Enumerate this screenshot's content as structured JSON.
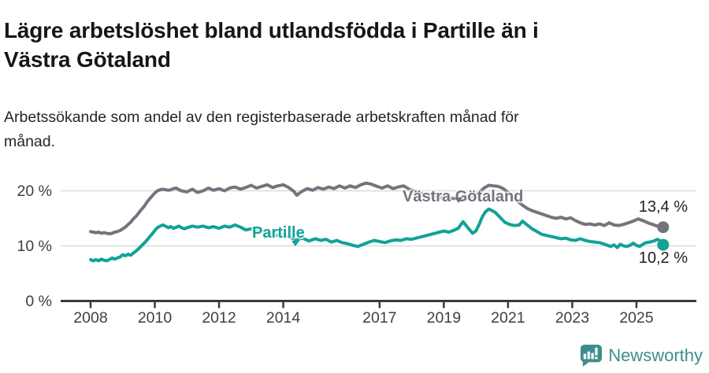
{
  "header": {
    "title": "Lägre arbetslöshet bland utlandsfödda i Partille än i\nVästra Götaland",
    "subtitle": "Arbetssökande som andel av den registerbaserade arbetskraften månad för\nmånad."
  },
  "footer": {
    "brand": "Newsworthy",
    "brand_color": "#3d8e8a"
  },
  "chart_data": {
    "type": "line",
    "title": "Lägre arbetslöshet bland utlandsfödda i Partille än i Västra Götaland",
    "subtitle": "Arbetssökande som andel av den registerbaserade arbetskraften månad för månad.",
    "xlabel": "",
    "ylabel": "",
    "grid": "horizontal",
    "legend_position": "inline-labels",
    "ylim": [
      0,
      23
    ],
    "xlim": [
      2007.1,
      2026.9
    ],
    "y_ticks": [
      {
        "value": 0,
        "label": "0 %"
      },
      {
        "value": 10,
        "label": "10 %"
      },
      {
        "value": 20,
        "label": "20 %"
      }
    ],
    "x_ticks": [
      {
        "value": 2008,
        "label": "2008"
      },
      {
        "value": 2010,
        "label": "2010"
      },
      {
        "value": 2012,
        "label": "2012"
      },
      {
        "value": 2014,
        "label": "2014"
      },
      {
        "value": 2017,
        "label": "2017"
      },
      {
        "value": 2019,
        "label": "2019"
      },
      {
        "value": 2021,
        "label": "2021"
      },
      {
        "value": 2023,
        "label": "2023"
      },
      {
        "value": 2025,
        "label": "2025"
      }
    ],
    "series": [
      {
        "name": "Västra Götaland",
        "color": "#75737e",
        "end_label": "13,4 %",
        "end_value": 13.4,
        "points": [
          [
            2008.0,
            12.6
          ],
          [
            2008.08,
            12.5
          ],
          [
            2008.17,
            12.4
          ],
          [
            2008.25,
            12.5
          ],
          [
            2008.33,
            12.3
          ],
          [
            2008.42,
            12.4
          ],
          [
            2008.5,
            12.3
          ],
          [
            2008.58,
            12.2
          ],
          [
            2008.67,
            12.3
          ],
          [
            2008.75,
            12.5
          ],
          [
            2008.83,
            12.6
          ],
          [
            2008.92,
            12.8
          ],
          [
            2009.0,
            13.1
          ],
          [
            2009.08,
            13.4
          ],
          [
            2009.17,
            13.9
          ],
          [
            2009.25,
            14.3
          ],
          [
            2009.33,
            14.9
          ],
          [
            2009.42,
            15.4
          ],
          [
            2009.5,
            16.0
          ],
          [
            2009.58,
            16.6
          ],
          [
            2009.67,
            17.2
          ],
          [
            2009.75,
            17.9
          ],
          [
            2009.83,
            18.5
          ],
          [
            2009.92,
            19.1
          ],
          [
            2010.0,
            19.6
          ],
          [
            2010.08,
            20.0
          ],
          [
            2010.17,
            20.2
          ],
          [
            2010.25,
            20.3
          ],
          [
            2010.33,
            20.2
          ],
          [
            2010.42,
            20.1
          ],
          [
            2010.5,
            20.2
          ],
          [
            2010.58,
            20.4
          ],
          [
            2010.67,
            20.5
          ],
          [
            2010.75,
            20.2
          ],
          [
            2010.83,
            20.0
          ],
          [
            2010.92,
            19.9
          ],
          [
            2011.0,
            19.8
          ],
          [
            2011.17,
            20.3
          ],
          [
            2011.33,
            19.7
          ],
          [
            2011.5,
            20.0
          ],
          [
            2011.67,
            20.5
          ],
          [
            2011.83,
            20.1
          ],
          [
            2012.0,
            20.4
          ],
          [
            2012.17,
            20.0
          ],
          [
            2012.33,
            20.5
          ],
          [
            2012.5,
            20.7
          ],
          [
            2012.67,
            20.3
          ],
          [
            2012.83,
            20.6
          ],
          [
            2013.0,
            21.0
          ],
          [
            2013.17,
            20.5
          ],
          [
            2013.33,
            20.8
          ],
          [
            2013.5,
            21.1
          ],
          [
            2013.67,
            20.6
          ],
          [
            2013.83,
            20.9
          ],
          [
            2014.0,
            21.1
          ],
          [
            2014.17,
            20.6
          ],
          [
            2014.33,
            19.9
          ],
          [
            2014.42,
            19.2
          ],
          [
            2014.58,
            19.9
          ],
          [
            2014.75,
            20.4
          ],
          [
            2014.92,
            20.1
          ],
          [
            2015.08,
            20.6
          ],
          [
            2015.25,
            20.3
          ],
          [
            2015.42,
            20.7
          ],
          [
            2015.58,
            20.4
          ],
          [
            2015.75,
            20.9
          ],
          [
            2015.92,
            20.5
          ],
          [
            2016.08,
            20.9
          ],
          [
            2016.25,
            20.6
          ],
          [
            2016.42,
            21.1
          ],
          [
            2016.58,
            21.4
          ],
          [
            2016.75,
            21.2
          ],
          [
            2016.92,
            20.8
          ],
          [
            2017.08,
            20.5
          ],
          [
            2017.25,
            20.9
          ],
          [
            2017.42,
            20.4
          ],
          [
            2017.58,
            20.7
          ],
          [
            2017.75,
            20.9
          ],
          [
            2017.92,
            20.3
          ],
          [
            2018.1,
            19.9
          ],
          [
            2018.3,
            19.5
          ],
          [
            2018.5,
            19.2
          ],
          [
            2018.7,
            19.0
          ],
          [
            2018.9,
            18.8
          ],
          [
            2019.1,
            18.7
          ],
          [
            2019.3,
            18.6
          ],
          [
            2019.5,
            18.7
          ],
          [
            2019.7,
            18.5
          ],
          [
            2019.9,
            18.9
          ],
          [
            2020.1,
            19.7
          ],
          [
            2020.25,
            20.5
          ],
          [
            2020.4,
            21.0
          ],
          [
            2020.55,
            20.9
          ],
          [
            2020.7,
            20.8
          ],
          [
            2020.85,
            20.4
          ],
          [
            2021.0,
            19.7
          ],
          [
            2021.15,
            18.9
          ],
          [
            2021.3,
            18.1
          ],
          [
            2021.45,
            17.4
          ],
          [
            2021.6,
            16.8
          ],
          [
            2021.75,
            16.4
          ],
          [
            2021.9,
            16.1
          ],
          [
            2022.05,
            15.8
          ],
          [
            2022.2,
            15.5
          ],
          [
            2022.35,
            15.2
          ],
          [
            2022.5,
            15.0
          ],
          [
            2022.65,
            15.2
          ],
          [
            2022.8,
            14.9
          ],
          [
            2022.95,
            15.1
          ],
          [
            2023.1,
            14.6
          ],
          [
            2023.25,
            14.2
          ],
          [
            2023.4,
            13.9
          ],
          [
            2023.55,
            14.0
          ],
          [
            2023.7,
            13.8
          ],
          [
            2023.85,
            14.0
          ],
          [
            2024.0,
            13.7
          ],
          [
            2024.15,
            14.2
          ],
          [
            2024.3,
            13.8
          ],
          [
            2024.45,
            13.7
          ],
          [
            2024.6,
            13.9
          ],
          [
            2024.75,
            14.2
          ],
          [
            2024.9,
            14.5
          ],
          [
            2025.05,
            14.9
          ],
          [
            2025.2,
            14.6
          ],
          [
            2025.35,
            14.2
          ],
          [
            2025.5,
            13.9
          ],
          [
            2025.65,
            13.6
          ],
          [
            2025.75,
            13.7
          ],
          [
            2025.83,
            13.4
          ]
        ]
      },
      {
        "name": "Partille",
        "color": "#12a296",
        "end_label": "10,2 %",
        "end_value": 10.2,
        "points": [
          [
            2008.0,
            7.5
          ],
          [
            2008.08,
            7.3
          ],
          [
            2008.17,
            7.5
          ],
          [
            2008.25,
            7.3
          ],
          [
            2008.33,
            7.6
          ],
          [
            2008.42,
            7.4
          ],
          [
            2008.5,
            7.3
          ],
          [
            2008.58,
            7.5
          ],
          [
            2008.67,
            7.8
          ],
          [
            2008.75,
            7.6
          ],
          [
            2008.83,
            7.8
          ],
          [
            2008.92,
            8.0
          ],
          [
            2009.0,
            8.4
          ],
          [
            2009.08,
            8.2
          ],
          [
            2009.17,
            8.5
          ],
          [
            2009.25,
            8.3
          ],
          [
            2009.33,
            8.7
          ],
          [
            2009.42,
            9.1
          ],
          [
            2009.5,
            9.5
          ],
          [
            2009.58,
            10.0
          ],
          [
            2009.67,
            10.5
          ],
          [
            2009.75,
            11.0
          ],
          [
            2009.83,
            11.6
          ],
          [
            2009.92,
            12.2
          ],
          [
            2010.0,
            12.8
          ],
          [
            2010.08,
            13.3
          ],
          [
            2010.17,
            13.6
          ],
          [
            2010.25,
            13.8
          ],
          [
            2010.33,
            13.6
          ],
          [
            2010.42,
            13.3
          ],
          [
            2010.5,
            13.5
          ],
          [
            2010.58,
            13.2
          ],
          [
            2010.67,
            13.4
          ],
          [
            2010.75,
            13.6
          ],
          [
            2010.83,
            13.3
          ],
          [
            2010.92,
            13.1
          ],
          [
            2011.0,
            13.3
          ],
          [
            2011.17,
            13.6
          ],
          [
            2011.33,
            13.4
          ],
          [
            2011.5,
            13.6
          ],
          [
            2011.67,
            13.3
          ],
          [
            2011.83,
            13.5
          ],
          [
            2012.0,
            13.2
          ],
          [
            2012.17,
            13.6
          ],
          [
            2012.33,
            13.4
          ],
          [
            2012.5,
            13.8
          ],
          [
            2012.67,
            13.4
          ],
          [
            2012.83,
            12.9
          ],
          [
            2013.0,
            13.1
          ],
          [
            2013.2,
            12.9
          ],
          [
            2013.4,
            12.6
          ],
          [
            2013.6,
            12.4
          ],
          [
            2013.8,
            11.9
          ],
          [
            2014.0,
            12.1
          ],
          [
            2014.2,
            11.6
          ],
          [
            2014.4,
            11.1
          ],
          [
            2014.6,
            11.4
          ],
          [
            2014.8,
            10.9
          ],
          [
            2015.0,
            11.3
          ],
          [
            2015.17,
            11.0
          ],
          [
            2015.33,
            11.2
          ],
          [
            2015.5,
            10.7
          ],
          [
            2015.67,
            11.0
          ],
          [
            2015.83,
            10.6
          ],
          [
            2016.0,
            10.4
          ],
          [
            2016.17,
            10.1
          ],
          [
            2016.33,
            9.9
          ],
          [
            2016.5,
            10.3
          ],
          [
            2016.67,
            10.7
          ],
          [
            2016.83,
            11.0
          ],
          [
            2017.0,
            10.8
          ],
          [
            2017.17,
            10.6
          ],
          [
            2017.33,
            10.9
          ],
          [
            2017.5,
            11.1
          ],
          [
            2017.67,
            11.0
          ],
          [
            2017.83,
            11.3
          ],
          [
            2018.0,
            11.2
          ],
          [
            2018.2,
            11.5
          ],
          [
            2018.4,
            11.8
          ],
          [
            2018.6,
            12.1
          ],
          [
            2018.8,
            12.4
          ],
          [
            2019.0,
            12.7
          ],
          [
            2019.15,
            12.5
          ],
          [
            2019.3,
            12.8
          ],
          [
            2019.45,
            13.2
          ],
          [
            2019.6,
            14.4
          ],
          [
            2019.75,
            13.3
          ],
          [
            2019.9,
            12.3
          ],
          [
            2020.0,
            12.7
          ],
          [
            2020.1,
            13.9
          ],
          [
            2020.2,
            15.3
          ],
          [
            2020.3,
            16.2
          ],
          [
            2020.4,
            16.7
          ],
          [
            2020.5,
            16.4
          ],
          [
            2020.6,
            16.1
          ],
          [
            2020.75,
            15.2
          ],
          [
            2020.9,
            14.3
          ],
          [
            2021.05,
            13.9
          ],
          [
            2021.2,
            13.7
          ],
          [
            2021.35,
            13.8
          ],
          [
            2021.45,
            14.5
          ],
          [
            2021.6,
            13.8
          ],
          [
            2021.75,
            13.1
          ],
          [
            2021.9,
            12.6
          ],
          [
            2022.05,
            12.1
          ],
          [
            2022.2,
            11.9
          ],
          [
            2022.35,
            11.7
          ],
          [
            2022.5,
            11.5
          ],
          [
            2022.65,
            11.3
          ],
          [
            2022.8,
            11.4
          ],
          [
            2022.95,
            11.1
          ],
          [
            2023.1,
            11.0
          ],
          [
            2023.25,
            11.3
          ],
          [
            2023.4,
            11.0
          ],
          [
            2023.55,
            10.8
          ],
          [
            2023.7,
            10.7
          ],
          [
            2023.85,
            10.6
          ],
          [
            2024.0,
            10.3
          ],
          [
            2024.1,
            10.1
          ],
          [
            2024.2,
            9.9
          ],
          [
            2024.3,
            10.2
          ],
          [
            2024.4,
            9.7
          ],
          [
            2024.5,
            10.3
          ],
          [
            2024.6,
            10.0
          ],
          [
            2024.7,
            9.9
          ],
          [
            2024.8,
            10.1
          ],
          [
            2024.9,
            10.5
          ],
          [
            2025.0,
            10.1
          ],
          [
            2025.1,
            9.9
          ],
          [
            2025.2,
            10.3
          ],
          [
            2025.3,
            10.6
          ],
          [
            2025.42,
            10.7
          ],
          [
            2025.55,
            10.9
          ],
          [
            2025.65,
            11.2
          ],
          [
            2025.75,
            10.9
          ],
          [
            2025.83,
            10.2
          ]
        ]
      }
    ],
    "colors": {
      "axis": "#3a3a3a",
      "grid": "#dbdbdb",
      "tick_text": "#3f3f3f",
      "end_label_text": "#1f1f1f"
    }
  }
}
